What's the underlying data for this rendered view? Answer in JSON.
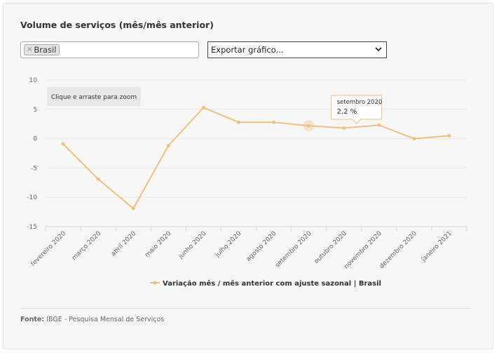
{
  "title": "Volume de serviços (mês/mês anterior)",
  "filter": {
    "chip_label": "Brasil",
    "remove_glyph": "×"
  },
  "export": {
    "selected": "Exportar gráfico...",
    "chevron": "⌄"
  },
  "zoom_hint": "Clique e arraste para zoom",
  "tooltip": {
    "header": "setembro 2020",
    "value": "2,2 %"
  },
  "source": {
    "label": "Fonte:",
    "text": "IBGE - Pesquisa Mensal de Serviços"
  },
  "colors": {
    "series": "#f2c07e",
    "grid": "#e6e6e6",
    "axis": "#ccd6eb",
    "text": "#666666"
  },
  "chart_data": {
    "type": "line",
    "categories": [
      "fevereiro 2020",
      "março 2020",
      "abril 2020",
      "maio 2020",
      "junho 2020",
      "julho 2020",
      "agosto 2020",
      "setembro 2020",
      "outubro 2020",
      "novembro 2020",
      "dezembro 2020",
      "janeiro 2021"
    ],
    "series": [
      {
        "name": "Variação mês / mês anterior com ajuste sazonal | Brasil",
        "values": [
          -0.9,
          -6.9,
          -11.9,
          -1.2,
          5.3,
          2.8,
          2.8,
          2.2,
          1.8,
          2.3,
          0.0,
          0.5
        ]
      }
    ],
    "ylim": [
      -15,
      10
    ],
    "yticks": [
      "10",
      "5",
      "0",
      "-5",
      "-10",
      "-15"
    ],
    "ytick_values": [
      10,
      5,
      0,
      -5,
      -10,
      -15
    ],
    "highlight_index": 7,
    "grid": true,
    "legend": "bottom-center"
  }
}
